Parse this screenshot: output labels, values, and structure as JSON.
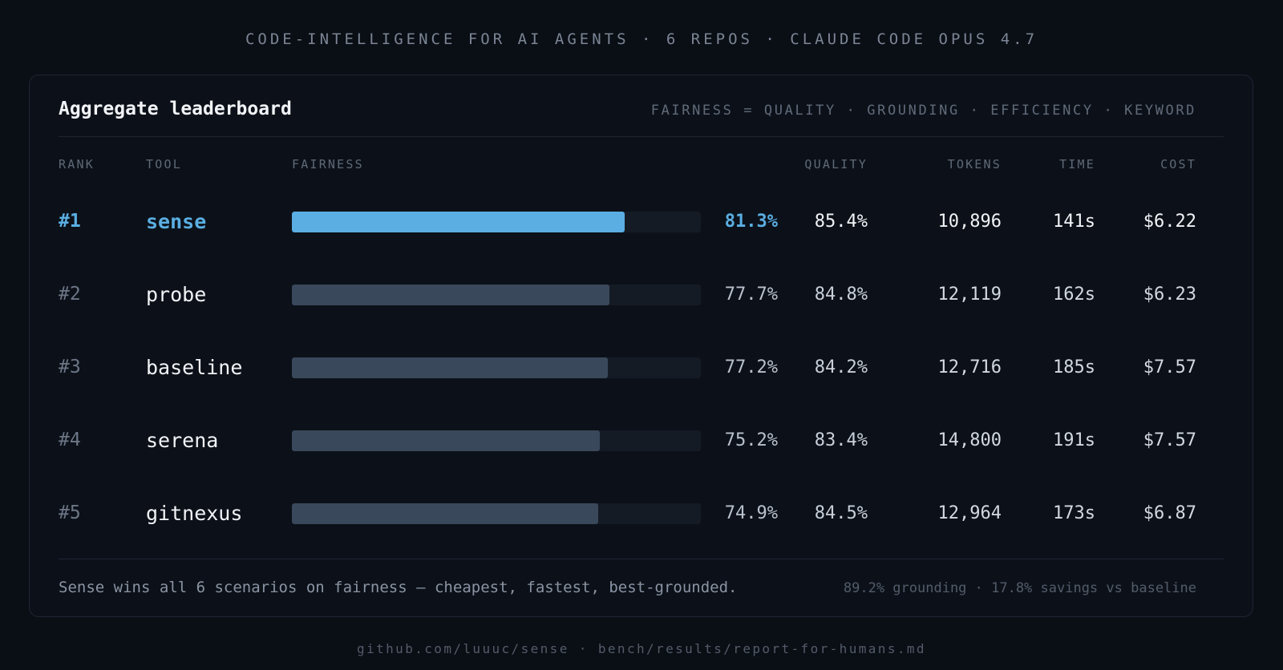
{
  "header": {
    "caption": "CODE-INTELLIGENCE FOR AI AGENTS · 6 REPOS · CLAUDE CODE OPUS 4.7"
  },
  "card": {
    "title": "Aggregate leaderboard",
    "formula": "FAIRNESS = QUALITY · GROUNDING · EFFICIENCY · KEYWORD"
  },
  "columns": {
    "rank": "RANK",
    "tool": "TOOL",
    "fairness": "FAIRNESS",
    "quality": "QUALITY",
    "tokens": "TOKENS",
    "time": "TIME",
    "cost": "COST"
  },
  "rows": [
    {
      "rank": "#1",
      "tool": "sense",
      "fairness": "81.3%",
      "quality": "85.4%",
      "tokens": "10,896",
      "time": "141s",
      "cost": "$6.22"
    },
    {
      "rank": "#2",
      "tool": "probe",
      "fairness": "77.7%",
      "quality": "84.8%",
      "tokens": "12,119",
      "time": "162s",
      "cost": "$6.23"
    },
    {
      "rank": "#3",
      "tool": "baseline",
      "fairness": "77.2%",
      "quality": "84.2%",
      "tokens": "12,716",
      "time": "185s",
      "cost": "$7.57"
    },
    {
      "rank": "#4",
      "tool": "serena",
      "fairness": "75.2%",
      "quality": "83.4%",
      "tokens": "14,800",
      "time": "191s",
      "cost": "$7.57"
    },
    {
      "rank": "#5",
      "tool": "gitnexus",
      "fairness": "74.9%",
      "quality": "84.5%",
      "tokens": "12,964",
      "time": "173s",
      "cost": "$6.87"
    }
  ],
  "footer": {
    "summary": "Sense wins all 6 scenarios on fairness — cheapest, fastest, best-grounded.",
    "stats": "89.2% grounding · 17.8% savings vs baseline"
  },
  "source": "github.com/luuuc/sense · bench/results/report-for-humans.md",
  "colors": {
    "accent": "#5aaee2",
    "bar": "#3a485b",
    "track": "#151b25",
    "background": "#0a0e15"
  },
  "chart_data": {
    "type": "bar",
    "orientation": "horizontal",
    "title": "Aggregate leaderboard",
    "categories": [
      "sense",
      "probe",
      "baseline",
      "serena",
      "gitnexus"
    ],
    "series": [
      {
        "name": "FAIRNESS",
        "values": [
          81.3,
          77.7,
          77.2,
          75.2,
          74.9
        ]
      }
    ],
    "table_columns": {
      "QUALITY": [
        85.4,
        84.8,
        84.2,
        83.4,
        84.5
      ],
      "TOKENS": [
        10896,
        12119,
        12716,
        14800,
        12964
      ],
      "TIME": [
        141,
        162,
        185,
        191,
        173
      ],
      "COST": [
        6.22,
        6.23,
        7.57,
        7.57,
        6.87
      ]
    },
    "xlim": [
      0,
      100
    ],
    "highlight": "sense",
    "grid": false,
    "legend": "none"
  }
}
